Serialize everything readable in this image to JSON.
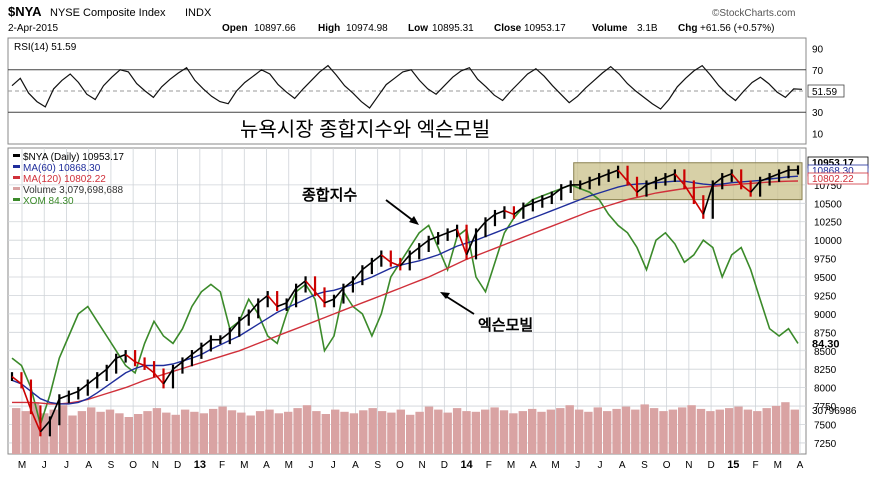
{
  "header": {
    "symbol": "$NYA",
    "name": "NYSE Composite Index",
    "exchange": "INDX",
    "date": "2-Apr-2015",
    "open_label": "Open",
    "open": "10897.66",
    "high_label": "High",
    "high": "10974.98",
    "low_label": "Low",
    "low": "10895.31",
    "close_label": "Close",
    "close": "10953.17",
    "volume_label": "Volume",
    "volume": "3.1B",
    "chg_label": "Chg",
    "chg": "+61.56 (+0.57%)",
    "brand": "©StockCharts.com"
  },
  "annotations": {
    "title_korean": "뉴욕시장 종합지수와 엑슨모빌",
    "index_label": "종합지수",
    "xom_label": "엑슨모빌"
  },
  "colors": {
    "price": "#000000",
    "up": "#000000",
    "down": "#cc0000",
    "ma60": "#1f2d9b",
    "ma120": "#d0303a",
    "xom": "#3b8a2a",
    "volume": "#d9a3a3",
    "highlight_box": "#c9c08a",
    "title_korean": "#2233cc",
    "grid": "#cfd3d8"
  },
  "chart_data": [
    {
      "type": "line",
      "name": "RSI panel",
      "title": "RSI(14) 51.59",
      "legend_text": "RSI(14)",
      "last_value": "51.59",
      "ylim": [
        0,
        100
      ],
      "yticks": [
        "90",
        "70",
        "50",
        "30",
        "10"
      ],
      "reference_lines": [
        30,
        50,
        70
      ],
      "series": [
        {
          "name": "RSI(14)",
          "values": [
            55,
            62,
            48,
            40,
            35,
            52,
            60,
            66,
            58,
            47,
            42,
            55,
            63,
            70,
            68,
            57,
            50,
            44,
            54,
            61,
            67,
            72,
            60,
            52,
            45,
            40,
            38,
            50,
            58,
            64,
            70,
            66,
            56,
            49,
            43,
            52,
            60,
            68,
            74,
            65,
            55,
            48,
            40,
            34,
            45,
            56,
            62,
            68,
            70,
            60,
            52,
            47,
            55,
            63,
            69,
            72,
            61,
            54,
            46,
            41,
            50,
            58,
            66,
            71,
            64,
            55,
            47,
            39,
            45,
            53,
            60,
            67,
            73,
            66,
            57,
            50,
            44,
            38,
            33,
            42,
            54,
            62,
            69,
            74,
            65,
            55,
            47,
            41,
            50,
            58,
            63,
            57,
            49,
            44,
            52,
            51.59
          ]
        }
      ]
    },
    {
      "type": "line",
      "name": "Price panel",
      "title": "$NYA (Daily) 10953.17",
      "ylim": [
        7100,
        11250
      ],
      "yticks": [
        "10750",
        "10500",
        "10250",
        "10000",
        "9750",
        "9500",
        "9250",
        "9000",
        "8750",
        "8500",
        "8250",
        "8000",
        "7750",
        "7500",
        "7250"
      ],
      "x_labels": [
        "M",
        "J",
        "J",
        "A",
        "S",
        "O",
        "N",
        "D",
        "13",
        "F",
        "M",
        "A",
        "M",
        "J",
        "J",
        "A",
        "S",
        "O",
        "N",
        "D",
        "14",
        "F",
        "M",
        "A",
        "M",
        "J",
        "J",
        "A",
        "S",
        "O",
        "N",
        "D",
        "15",
        "F",
        "M",
        "A"
      ],
      "legend": [
        {
          "text": "$NYA (Daily) 10953.17",
          "color_key": "price"
        },
        {
          "text": "MA(60) 10868.30",
          "color_key": "ma60"
        },
        {
          "text": "MA(120) 10802.22",
          "color_key": "ma120"
        },
        {
          "text": "Volume 3,079,698,688",
          "color_key": "volume"
        },
        {
          "text": "XOM 84.30",
          "color_key": "xom"
        }
      ],
      "price_tags": [
        "10953.17",
        "10868.30",
        "10802.22"
      ],
      "xom_tag": "84.30",
      "volume_tag": "30796986",
      "xom_axis_ticks": [
        "84.30"
      ],
      "series": [
        {
          "name": "$NYA",
          "values": [
            8150,
            8050,
            7700,
            7400,
            7550,
            7850,
            7900,
            7950,
            8050,
            8150,
            8250,
            8400,
            8450,
            8350,
            8300,
            8200,
            8050,
            8250,
            8350,
            8450,
            8550,
            8650,
            8650,
            8750,
            8900,
            9000,
            9150,
            9250,
            9100,
            9150,
            9350,
            9450,
            9300,
            9150,
            9200,
            9350,
            9450,
            9600,
            9700,
            9800,
            9700,
            9650,
            9800,
            9900,
            10000,
            10050,
            10100,
            10150,
            9800,
            10100,
            10250,
            10350,
            10400,
            10350,
            10450,
            10500,
            10550,
            10600,
            10700,
            10750,
            10750,
            10800,
            10850,
            10900,
            10950,
            10800,
            10650,
            10750,
            10800,
            10850,
            10900,
            10750,
            10550,
            10350,
            10750,
            10850,
            10900,
            10750,
            10650,
            10800,
            10850,
            10900,
            10950,
            10953
          ]
        },
        {
          "name": "MA(60)",
          "values": [
            8100,
            8050,
            7950,
            7850,
            7800,
            7780,
            7780,
            7800,
            7850,
            7930,
            8020,
            8110,
            8200,
            8260,
            8300,
            8300,
            8300,
            8320,
            8360,
            8400,
            8450,
            8520,
            8580,
            8640,
            8700,
            8780,
            8860,
            8940,
            9020,
            9080,
            9140,
            9200,
            9260,
            9300,
            9320,
            9360,
            9400,
            9450,
            9500,
            9560,
            9620,
            9660,
            9690,
            9720,
            9760,
            9800,
            9860,
            9920,
            9960,
            10000,
            10050,
            10100,
            10150,
            10200,
            10250,
            10300,
            10350,
            10400,
            10450,
            10500,
            10550,
            10600,
            10640,
            10680,
            10720,
            10750,
            10760,
            10770,
            10780,
            10790,
            10800,
            10800,
            10780,
            10760,
            10750,
            10760,
            10780,
            10790,
            10800,
            10810,
            10830,
            10845,
            10860,
            10868
          ]
        },
        {
          "name": "MA(120)",
          "values": [
            7800,
            7800,
            7800,
            7790,
            7780,
            7780,
            7790,
            7810,
            7840,
            7880,
            7920,
            7960,
            8000,
            8050,
            8100,
            8140,
            8180,
            8220,
            8260,
            8300,
            8340,
            8380,
            8420,
            8460,
            8500,
            8550,
            8600,
            8650,
            8700,
            8750,
            8800,
            8850,
            8900,
            8950,
            9000,
            9050,
            9100,
            9150,
            9200,
            9250,
            9300,
            9350,
            9400,
            9450,
            9500,
            9560,
            9620,
            9680,
            9740,
            9790,
            9840,
            9890,
            9940,
            9990,
            10040,
            10090,
            10140,
            10190,
            10240,
            10290,
            10340,
            10390,
            10430,
            10470,
            10510,
            10550,
            10580,
            10610,
            10640,
            10660,
            10680,
            10700,
            10710,
            10720,
            10730,
            10740,
            10750,
            10760,
            10770,
            10780,
            10788,
            10795,
            10800,
            10802
          ]
        },
        {
          "name": "XOM",
          "values": [
            8400,
            8300,
            8000,
            7500,
            7900,
            8400,
            8700,
            9000,
            9100,
            8900,
            8700,
            8500,
            8300,
            8200,
            8600,
            8900,
            8700,
            8600,
            8800,
            9100,
            9300,
            9400,
            9300,
            8800,
            8900,
            9200,
            9000,
            8700,
            8600,
            9000,
            9300,
            9400,
            9200,
            8500,
            8700,
            9300,
            9100,
            9000,
            8700,
            9000,
            9500,
            9700,
            9900,
            10100,
            10200,
            9900,
            9600,
            10050,
            10150,
            9500,
            9300,
            9700,
            10100,
            10300,
            10450,
            10550,
            10600,
            10650,
            10700,
            10750,
            10700,
            10650,
            10550,
            10350,
            10200,
            10100,
            9900,
            9600,
            10000,
            10100,
            9950,
            9700,
            9800,
            10000,
            9900,
            9500,
            9800,
            9900,
            9600,
            9200,
            8800,
            8700,
            8800,
            8600
          ]
        }
      ],
      "highlight_box": {
        "x_from": "J (14)",
        "x_to": "A (15)",
        "y_from": 10550,
        "y_to": 11050
      }
    },
    {
      "type": "bar",
      "name": "Volume",
      "series": [
        {
          "name": "Volume",
          "values": [
            0.62,
            0.58,
            0.7,
            0.55,
            0.6,
            0.66,
            0.52,
            0.58,
            0.63,
            0.57,
            0.6,
            0.55,
            0.5,
            0.54,
            0.58,
            0.62,
            0.56,
            0.53,
            0.6,
            0.57,
            0.55,
            0.61,
            0.64,
            0.59,
            0.56,
            0.52,
            0.58,
            0.6,
            0.55,
            0.57,
            0.62,
            0.66,
            0.58,
            0.54,
            0.6,
            0.57,
            0.55,
            0.59,
            0.62,
            0.58,
            0.56,
            0.6,
            0.53,
            0.57,
            0.64,
            0.6,
            0.56,
            0.62,
            0.58,
            0.57,
            0.6,
            0.63,
            0.59,
            0.55,
            0.58,
            0.61,
            0.57,
            0.6,
            0.62,
            0.66,
            0.6,
            0.57,
            0.63,
            0.58,
            0.61,
            0.64,
            0.6,
            0.67,
            0.62,
            0.58,
            0.6,
            0.63,
            0.66,
            0.61,
            0.58,
            0.6,
            0.62,
            0.64,
            0.6,
            0.58,
            0.62,
            0.65,
            0.7,
            0.6
          ]
        }
      ]
    }
  ]
}
